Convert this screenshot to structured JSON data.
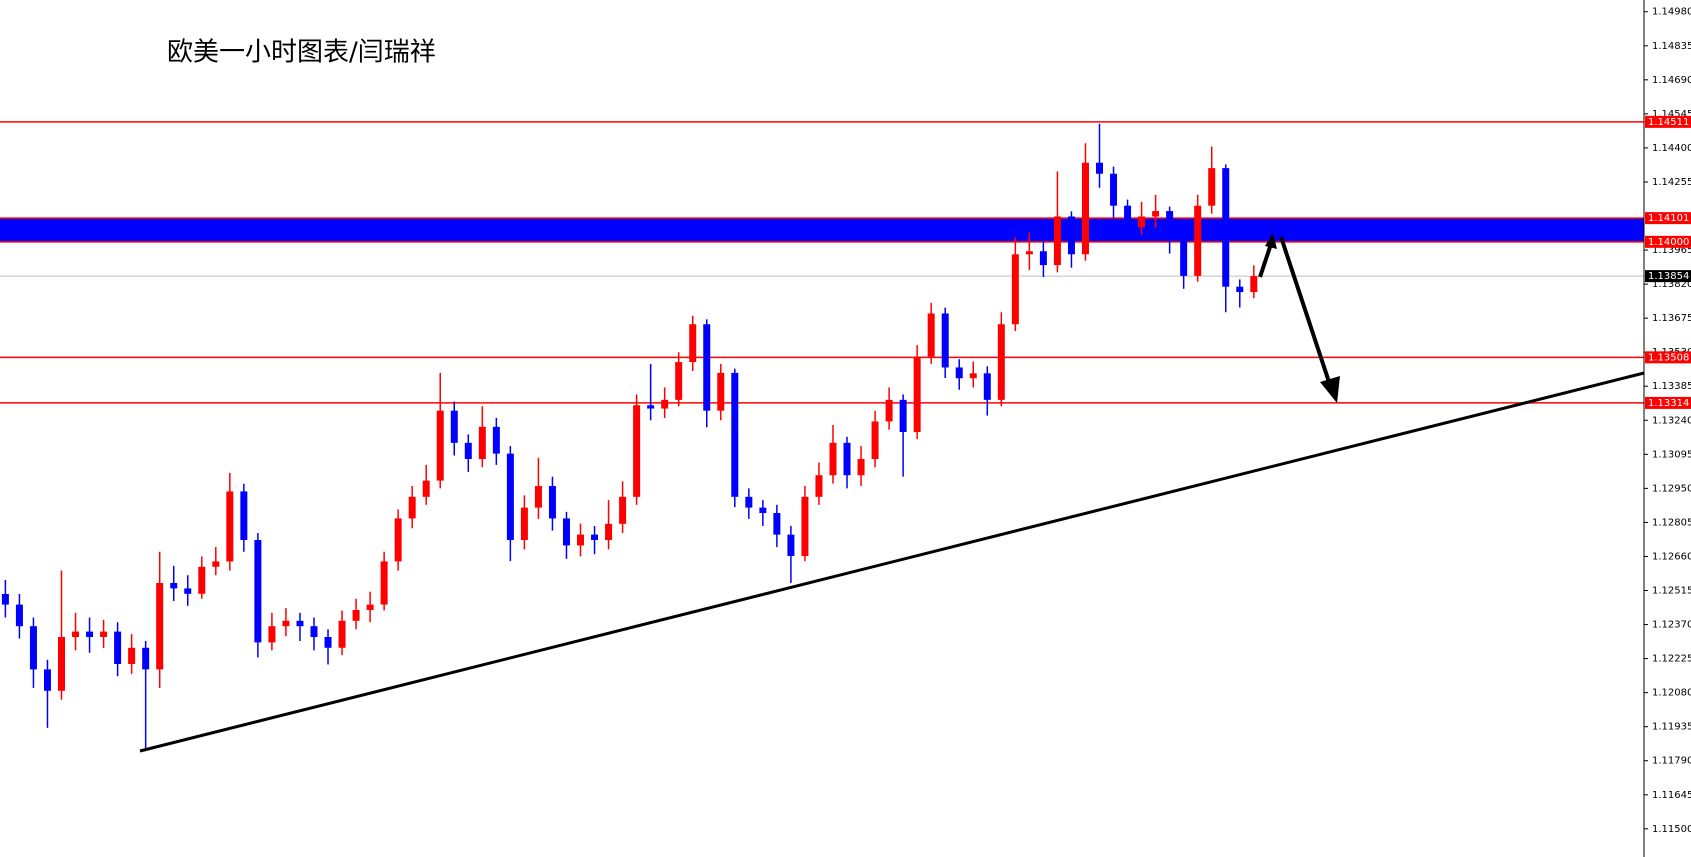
{
  "chart_data": {
    "type": "candlestick",
    "title": "欧美一小时图表/闫瑞祥",
    "up_color": "#ff0000",
    "down_color": "#0000ff",
    "open": [
      1.125,
      1.12455,
      1.12363,
      1.12179,
      1.12088,
      1.12317,
      1.1234,
      1.12317,
      1.1234,
      1.12202,
      1.12271,
      1.12179,
      1.12547,
      1.12524,
      1.12501,
      1.12616,
      1.12639,
      1.12937,
      1.1273,
      1.12294,
      1.12363,
      1.12386,
      1.12363,
      1.12317,
      1.12271,
      1.12386,
      1.12432,
      1.12455,
      1.12639,
      1.12822,
      1.12914,
      1.12983,
      1.13281,
      1.13144,
      1.13075,
      1.13212,
      1.13098,
      1.1273,
      1.12868,
      1.1296,
      1.12822,
      1.12707,
      1.12753,
      1.1273,
      1.12799,
      1.12914,
      1.13304,
      1.1329,
      1.13327,
      1.13488,
      1.13649,
      1.13281,
      1.13442,
      1.12914,
      1.12868,
      1.12845,
      1.12753,
      1.12662,
      1.12914,
      1.13006,
      1.13144,
      1.13006,
      1.13075,
      1.13235,
      1.13327,
      1.1319,
      1.13511,
      1.13695,
      1.13465,
      1.13419,
      1.1344,
      1.13327,
      1.13649,
      1.13947,
      1.1396,
      1.13901,
      1.14108,
      1.13947,
      1.14337,
      1.1429,
      1.14154,
      1.14062,
      1.14108,
      1.14131,
      1.14016,
      1.13855,
      1.14154,
      1.14314,
      1.13809,
      1.13786
    ],
    "high": [
      1.1256,
      1.125,
      1.124,
      1.1222,
      1.126,
      1.1242,
      1.124,
      1.1239,
      1.1238,
      1.1233,
      1.123,
      1.1268,
      1.1262,
      1.1258,
      1.1266,
      1.127,
      1.13016,
      1.1297,
      1.1276,
      1.1242,
      1.1244,
      1.1242,
      1.124,
      1.1235,
      1.1243,
      1.1248,
      1.1251,
      1.1268,
      1.1286,
      1.1296,
      1.1305,
      1.13442,
      1.1332,
      1.1318,
      1.133,
      1.1325,
      1.1313,
      1.1292,
      1.1308,
      1.13,
      1.1285,
      1.128,
      1.1279,
      1.129,
      1.1298,
      1.1335,
      1.1348,
      1.1338,
      1.1353,
      1.13685,
      1.1367,
      1.1348,
      1.1346,
      1.1295,
      1.129,
      1.1288,
      1.1279,
      1.1296,
      1.1306,
      1.1322,
      1.1317,
      1.1313,
      1.1328,
      1.1338,
      1.1335,
      1.1356,
      1.1374,
      1.1372,
      1.135,
      1.1349,
      1.1347,
      1.137,
      1.1402,
      1.1404,
      1.14,
      1.143,
      1.1413,
      1.1442,
      1.14503,
      1.1432,
      1.1418,
      1.1417,
      1.142,
      1.1415,
      1.1404,
      1.142,
      1.14406,
      1.1433,
      1.1384,
      1.139
    ],
    "low": [
      1.124,
      1.1231,
      1.121,
      1.1193,
      1.1205,
      1.1226,
      1.1225,
      1.1227,
      1.1215,
      1.1216,
      1.11831,
      1.121,
      1.1247,
      1.1245,
      1.1248,
      1.1258,
      1.126,
      1.1268,
      1.1223,
      1.1226,
      1.1232,
      1.123,
      1.1226,
      1.122,
      1.1224,
      1.1235,
      1.1238,
      1.1243,
      1.126,
      1.1278,
      1.1288,
      1.1295,
      1.1309,
      1.1302,
      1.1304,
      1.1305,
      1.1264,
      1.1269,
      1.1282,
      1.1277,
      1.1265,
      1.1266,
      1.1267,
      1.1269,
      1.1276,
      1.1288,
      1.1324,
      1.1325,
      1.133,
      1.1345,
      1.1321,
      1.1324,
      1.1287,
      1.1282,
      1.1279,
      1.127,
      1.12547,
      1.1264,
      1.1288,
      1.1297,
      1.1295,
      1.1296,
      1.1304,
      1.132,
      1.13,
      1.1316,
      1.1348,
      1.1342,
      1.1337,
      1.1338,
      1.1326,
      1.133,
      1.1362,
      1.1388,
      1.1385,
      1.1387,
      1.1389,
      1.1392,
      1.1423,
      1.141,
      1.1401,
      1.1403,
      1.1406,
      1.1395,
      1.138,
      1.1383,
      1.1412,
      1.137,
      1.1372,
      1.1376
    ],
    "close": [
      1.12455,
      1.12363,
      1.12179,
      1.12088,
      1.12317,
      1.1234,
      1.12317,
      1.1234,
      1.12202,
      1.12271,
      1.12179,
      1.12547,
      1.12524,
      1.12501,
      1.12616,
      1.12639,
      1.12937,
      1.1273,
      1.12294,
      1.12363,
      1.12386,
      1.12363,
      1.12317,
      1.12271,
      1.12386,
      1.12432,
      1.12455,
      1.12639,
      1.12822,
      1.12914,
      1.12983,
      1.13281,
      1.13144,
      1.13075,
      1.13212,
      1.13098,
      1.1273,
      1.12868,
      1.1296,
      1.12822,
      1.12707,
      1.12753,
      1.1273,
      1.12799,
      1.12914,
      1.13304,
      1.1329,
      1.13327,
      1.13488,
      1.13649,
      1.13281,
      1.13442,
      1.12914,
      1.12868,
      1.12845,
      1.12753,
      1.12662,
      1.12914,
      1.13006,
      1.13144,
      1.13006,
      1.13075,
      1.13235,
      1.13327,
      1.1319,
      1.13511,
      1.13695,
      1.13465,
      1.13419,
      1.1344,
      1.13327,
      1.13649,
      1.13947,
      1.1396,
      1.13901,
      1.14108,
      1.13947,
      1.14337,
      1.1429,
      1.14154,
      1.14062,
      1.14108,
      1.14131,
      1.14016,
      1.13855,
      1.14154,
      1.14314,
      1.13809,
      1.13786,
      1.13854
    ],
    "ylim": [
      1.1138,
      1.1503
    ],
    "yticks": [
      {
        "value": 1.1498,
        "label": "1.14980"
      },
      1.14835,
      {
        "value": 1.1469,
        "label": "1.14690"
      },
      1.14545,
      {
        "value": 1.144,
        "label": "1.14400"
      },
      1.14255,
      1.13965,
      {
        "value": 1.1382,
        "label": "1.13820"
      },
      1.13675,
      {
        "value": 1.1353,
        "label": "1.13530"
      },
      1.13385,
      {
        "value": 1.1324,
        "label": "1.13240"
      },
      1.13095,
      {
        "value": 1.1295,
        "label": "1.12950"
      },
      1.12805,
      {
        "value": 1.1266,
        "label": "1.12660"
      },
      1.12515,
      {
        "value": 1.1237,
        "label": "1.12370"
      },
      1.12225,
      {
        "value": 1.1208,
        "label": "1.12080"
      },
      1.11935,
      {
        "value": 1.1179,
        "label": "1.11790"
      },
      1.11645,
      {
        "value": 1.115,
        "label": "1.11500"
      }
    ],
    "levels": [
      1.14511,
      1.13508,
      1.13314
    ],
    "level_color": "#ff0000",
    "band": {
      "low": {
        "value": 1.14,
        "label": "1.14000"
      },
      "high": 1.14101,
      "color": "#0000ff"
    },
    "last_price": 1.13854
  }
}
